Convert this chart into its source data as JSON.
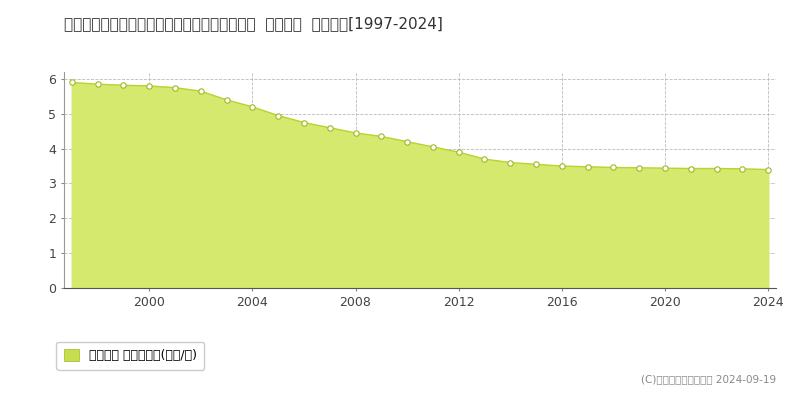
{
  "title": "福島県西白河郡中島村大字滑津字滑津原２番１  基準地価  地価推移[1997-2024]",
  "years": [
    1997,
    1998,
    1999,
    2000,
    2001,
    2002,
    2003,
    2004,
    2005,
    2006,
    2007,
    2008,
    2009,
    2010,
    2011,
    2012,
    2013,
    2014,
    2015,
    2016,
    2017,
    2018,
    2019,
    2020,
    2021,
    2022,
    2023,
    2024
  ],
  "values": [
    5.9,
    5.85,
    5.82,
    5.8,
    5.75,
    5.65,
    5.4,
    5.2,
    4.95,
    4.75,
    4.6,
    4.45,
    4.35,
    4.2,
    4.05,
    3.9,
    3.7,
    3.6,
    3.55,
    3.5,
    3.48,
    3.46,
    3.45,
    3.44,
    3.43,
    3.43,
    3.42,
    3.4
  ],
  "fill_color": "#d4e96e",
  "line_color": "#b8d430",
  "marker_facecolor": "#ffffff",
  "marker_edgecolor": "#a0b820",
  "grid_color": "#bbbbbb",
  "bg_color": "#ffffff",
  "plot_bg_color": "#ffffff",
  "ylim": [
    0,
    6.2
  ],
  "yticks": [
    0,
    1,
    2,
    3,
    4,
    5,
    6
  ],
  "xtick_years": [
    2000,
    2004,
    2008,
    2012,
    2016,
    2020,
    2024
  ],
  "legend_label": "基準地価 平均坪単価(万円/坪)",
  "copyright_text": "(C)土地価格ドットコム 2024-09-19",
  "title_fontsize": 11,
  "axis_fontsize": 9,
  "legend_fontsize": 9,
  "legend_square_color": "#c8dc50"
}
